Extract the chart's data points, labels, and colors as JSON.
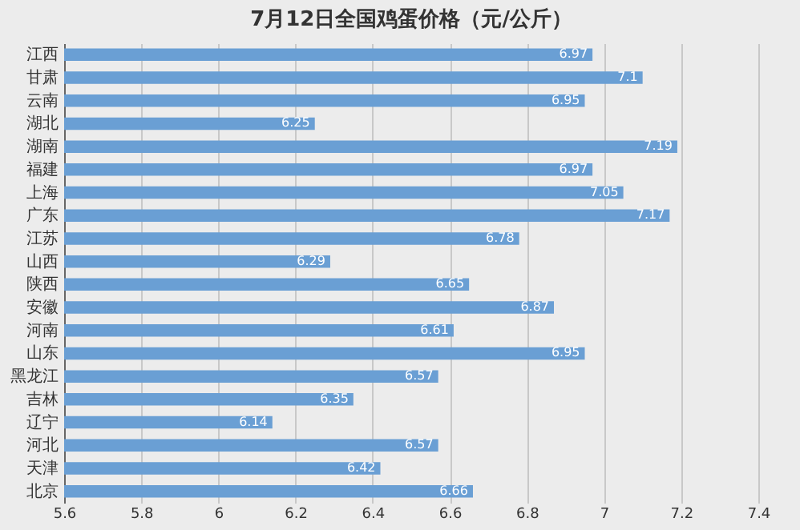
{
  "chart_data": {
    "type": "bar",
    "orientation": "horizontal",
    "title": "7月12日全国鸡蛋价格（元/公斤）",
    "categories": [
      "江西",
      "甘肃",
      "云南",
      "湖北",
      "湖南",
      "福建",
      "上海",
      "广东",
      "江苏",
      "山西",
      "陕西",
      "安徽",
      "河南",
      "山东",
      "黑龙江",
      "吉林",
      "辽宁",
      "河北",
      "天津",
      "北京"
    ],
    "values": [
      6.97,
      7.1,
      6.95,
      6.25,
      7.19,
      6.97,
      7.05,
      7.17,
      6.78,
      6.29,
      6.65,
      6.87,
      6.61,
      6.95,
      6.57,
      6.35,
      6.14,
      6.57,
      6.42,
      6.66
    ],
    "color": "#6a9fd4",
    "xlim": [
      5.6,
      7.4
    ],
    "xticks": [
      5.6,
      5.8,
      6,
      6.2,
      6.4,
      6.6,
      6.8,
      7,
      7.2,
      7.4
    ],
    "grid": "x",
    "data_labels": true
  }
}
